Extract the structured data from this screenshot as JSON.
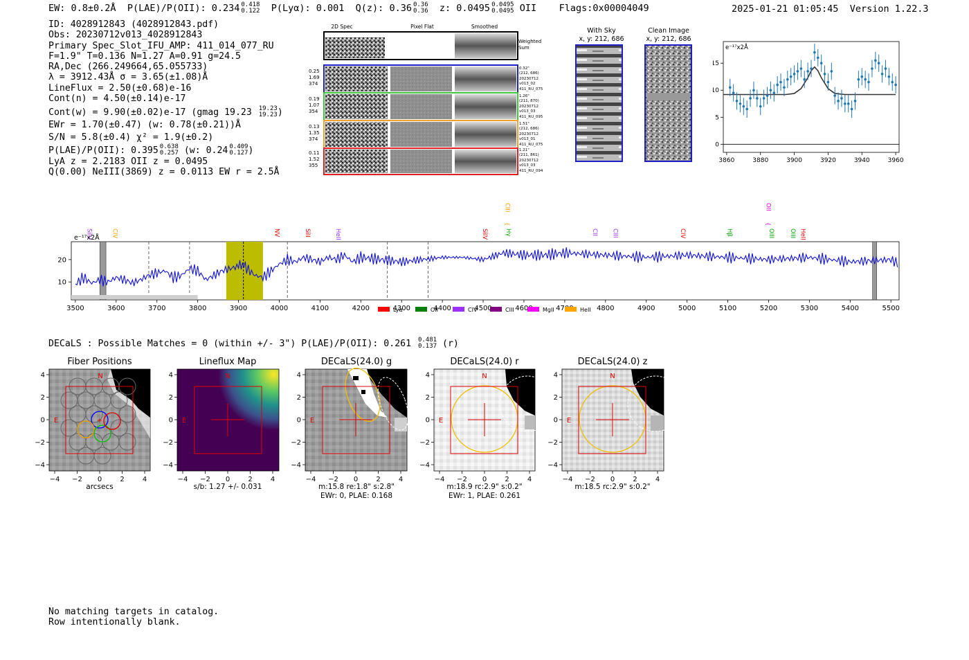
{
  "header": {
    "ew": "EW: 0.8±0.2Å",
    "plae_label": "P(LAE)/P(OII): 0.234",
    "plae_hi": "0.418",
    "plae_lo": "0.122",
    "plya": "P(Lyα): 0.001",
    "qz_label": "Q(z): 0.36",
    "qz_hi": "0.36",
    "qz_lo": "0.36",
    "z_label": "z: 0.0495",
    "z_hi": "0.0495",
    "z_lo": "0.0495",
    "z_line": "OII",
    "flags": "Flags:0x00004049",
    "timestamp": "2025-01-21 01:05:45",
    "version": "Version 1.22.3"
  },
  "info": {
    "lines": [
      "ID: 4028912843 (4028912843.pdf)",
      "Obs: 20230712v013_4028912843",
      "Primary Spec_Slot_IFU_AMP: 411_014_077_RU",
      "F=1.9\"  T=0.136  N=1.27  A=0.91  g=24.5",
      "RA,Dec (266.249664,65.055733)",
      "λ = 3912.43Å  σ = 3.65(±1.08)Å",
      "LineFlux = 2.50(±0.68)e-16",
      "Cont(n) = 4.50(±0.14)e-17"
    ],
    "contw": "Cont(w) = 9.90(±0.02)e-17 (gmag 19.23",
    "contw_hi": "19.23",
    "contw_lo": "19.23",
    "contw_close": ")",
    "ewr": "EWr = 1.70(±0.47) (w: 0.78(±0.21))Å",
    "sn": "S/N = 5.8(±0.4)  χ² = 1.9(±0.2)",
    "plae2": "P(LAE)/P(OII): 0.395",
    "plae2_hi": "0.638",
    "plae2_lo": "0.257",
    "plae2_w": "(w: 0.24",
    "plae2_w_hi": "0.409",
    "plae2_w_lo": "0.127",
    "plae2_close": ")",
    "lya": "LyA z = 2.2183  OII z = 0.0495",
    "q": "Q(0.00) NeIII(3869) z = 0.0113  EW r = 2.5Å"
  },
  "cutouts": {
    "col_headers": [
      "2D Spec",
      "Pixel Flat",
      "Smoothed"
    ],
    "weighted_sum": "Weighted Sum",
    "rows": [
      {
        "left": [
          "0.25",
          "1.69",
          "374"
        ],
        "right": [
          "0.32\"",
          "(212, 686)",
          "20230712",
          "v013_02",
          "411_RU_075"
        ],
        "color": "#1f1fc8"
      },
      {
        "left": [
          "0.19",
          "1.07",
          "354"
        ],
        "right": [
          "1.26\"",
          "(211, 870)",
          "20230712",
          "v013_03",
          "411_RU_095"
        ],
        "color": "#3cc83c"
      },
      {
        "left": [
          "0.13",
          "1.35",
          "374"
        ],
        "right": [
          "1.51\"",
          "(212, 686)",
          "20230712",
          "v013_01",
          "411_RU_075"
        ],
        "color": "#f0a030"
      },
      {
        "left": [
          "0.11",
          "1.52",
          "355"
        ],
        "right": [
          "1.21\"",
          "(211, 861)",
          "20230712",
          "v013_03",
          "411_RU_094"
        ],
        "color": "#e02020"
      }
    ],
    "with_sky_title": "With Sky",
    "with_sky_coords": "x, y: 212, 686",
    "clean_title": "Clean Image",
    "clean_coords": "x, y: 212, 686"
  },
  "fit_plot": {
    "unit_label": "e⁻¹⁷x2Å",
    "xticks": [
      "3860",
      "3880",
      "3900",
      "3920",
      "3940",
      "3960"
    ],
    "yticks": [
      "0",
      "5",
      "10",
      "15"
    ]
  },
  "spectrum": {
    "unit_label": "e⁻¹⁷x2Å",
    "xticks": [
      "3500",
      "3600",
      "3700",
      "3800",
      "3900",
      "4000",
      "4100",
      "4200",
      "4300",
      "4400",
      "4500",
      "4600",
      "4700",
      "4800",
      "4900",
      "5000",
      "5100",
      "5200",
      "5300",
      "5400",
      "5500"
    ],
    "yticks": [
      "10",
      "20"
    ],
    "line_labels": [
      {
        "text": "SiIV",
        "wl": 3530,
        "color": "#9b30ff",
        "row": 0
      },
      {
        "text": "CIV",
        "wl": 3593,
        "color": "#f0a000",
        "row": 0
      },
      {
        "text": "NV",
        "wl": 3990,
        "color": "#e00000",
        "row": 0
      },
      {
        "text": "SiII",
        "wl": 4065,
        "color": "#e00000",
        "row": 0
      },
      {
        "text": "HeII",
        "wl": 4140,
        "color": "#9b30ff",
        "row": 0
      },
      {
        "text": "CIII",
        "wl": 4555,
        "color": "#f0a000",
        "row": 1
      },
      {
        "text": "SiIV",
        "wl": 4500,
        "color": "#e00000",
        "row": 0
      },
      {
        "text": "Hγ",
        "wl": 4558,
        "color": "#00a000",
        "row": 0
      },
      {
        "text": "CII",
        "wl": 4770,
        "color": "#9b30ff",
        "row": 0
      },
      {
        "text": "CIII",
        "wl": 4820,
        "color": "#9b30ff",
        "row": 0
      },
      {
        "text": "CIV",
        "wl": 4985,
        "color": "#e00000",
        "row": 0
      },
      {
        "text": "Hβ",
        "wl": 5100,
        "color": "#00a000",
        "row": 0
      },
      {
        "text": "OII",
        "wl": 5195,
        "color": "#e000e0",
        "row": 1
      },
      {
        "text": "OIII",
        "wl": 5203,
        "color": "#00a000",
        "row": 0
      },
      {
        "text": "OIII",
        "wl": 5255,
        "color": "#00a000",
        "row": 0
      },
      {
        "text": "HeII",
        "wl": 5280,
        "color": "#e00000",
        "row": 0
      }
    ],
    "legend": [
      {
        "label": "Lyα",
        "color": "#ff0000"
      },
      {
        "label": "OII",
        "color": "#008000"
      },
      {
        "label": "CIV",
        "color": "#9b30ff"
      },
      {
        "label": "CIII",
        "color": "#800080"
      },
      {
        "label": "MgII",
        "color": "#ff00ff"
      },
      {
        "label": "HeII",
        "color": "#ffa500"
      }
    ]
  },
  "decals": {
    "summary": "DECaLS : Possible Matches = 0 (within +/- 3\")  P(LAE)/P(OII): 0.261",
    "summary_hi": "0.481",
    "summary_lo": "0.137",
    "summary_tail": "(r)",
    "panels": [
      {
        "title": "Fiber Positions",
        "cap1": "arcsecs",
        "cap2": ""
      },
      {
        "title": "Lineflux Map",
        "cap1": "s/b: 1.27 +/- 0.031",
        "cap2": ""
      },
      {
        "title": "DECaLS(24.0) g",
        "cap1": "m:15.8  re:1.8\"  s:2.8\"",
        "cap2": "EWr: 0, PLAE: 0.168"
      },
      {
        "title": "DECaLS(24.0) r",
        "cap1": "m:18.9 rc:2.9\"  s:0.2\"",
        "cap2": "EWr: 1, PLAE: 0.261"
      },
      {
        "title": "DECaLS(24.0) z",
        "cap1": "m:18.5 rc:2.9\"  s:0.2\"",
        "cap2": ""
      }
    ],
    "ticks": [
      "−4",
      "−2",
      "0",
      "2",
      "4"
    ],
    "yticks": [
      "4",
      "2",
      "0",
      "−2",
      "−4"
    ],
    "north": "N",
    "east": "E"
  },
  "footer": {
    "line1": "No matching targets in catalog.",
    "line2": "Row intentionally blank."
  },
  "chart_data": [
    {
      "type": "scatter",
      "title": "",
      "xlabel": "",
      "ylabel": "e⁻¹⁷x2Å",
      "xlim": [
        3858,
        3962
      ],
      "ylim": [
        -1.5,
        19
      ],
      "series": [
        {
          "x": [
            3862,
            3864,
            3866,
            3868,
            3870,
            3872,
            3874,
            3876,
            3878,
            3880,
            3882,
            3884,
            3886,
            3888,
            3890,
            3892,
            3894,
            3896,
            3898,
            3900,
            3902,
            3904,
            3906,
            3908,
            3910,
            3912,
            3914,
            3916,
            3918,
            3920,
            3922,
            3924,
            3926,
            3928,
            3930,
            3932,
            3934,
            3936,
            3938,
            3940,
            3942,
            3944,
            3946,
            3948,
            3950,
            3952,
            3954,
            3956,
            3958,
            3960
          ],
          "y": [
            10.5,
            9.5,
            8,
            7.5,
            7,
            6.5,
            8.5,
            10,
            8.5,
            7,
            8.5,
            9,
            10,
            9.5,
            11,
            11.5,
            10.5,
            12,
            12.5,
            13,
            13.5,
            14,
            12,
            13.5,
            14,
            17,
            16,
            15,
            13,
            11.5,
            13.5,
            9,
            8,
            8.5,
            7.5,
            7.5,
            6.5,
            8,
            12,
            12.5,
            12,
            11.5,
            14,
            15.5,
            15,
            13,
            14,
            12.5,
            11.5,
            11
          ]
        },
        {
          "type": "line",
          "x": [
            3858,
            3880,
            3895,
            3900,
            3904,
            3908,
            3910,
            3912,
            3914,
            3916,
            3920,
            3924,
            3930,
            3960
          ],
          "y": [
            9.2,
            9.2,
            9.2,
            9.4,
            10.3,
            12.3,
            13.6,
            14.3,
            13.6,
            12.3,
            10.3,
            9.4,
            9.2,
            9.2
          ]
        }
      ]
    },
    {
      "type": "line",
      "title": "",
      "xlabel": "",
      "ylabel": "e⁻¹⁷x2Å",
      "xlim": [
        3490,
        5520
      ],
      "ylim": [
        2,
        28
      ],
      "series": [
        {
          "x": [
            3500,
            3520,
            3540,
            3560,
            3580,
            3600,
            3620,
            3640,
            3660,
            3680,
            3700,
            3720,
            3740,
            3760,
            3780,
            3800,
            3820,
            3840,
            3860,
            3880,
            3900,
            3910,
            3920,
            3940,
            3960,
            3980,
            4000,
            4020,
            4040,
            4060,
            4080,
            4100,
            4120,
            4140,
            4160,
            4180,
            4200,
            4250,
            4300,
            4350,
            4400,
            4450,
            4500,
            4550,
            4600,
            4650,
            4700,
            4800,
            4900,
            5000,
            5100,
            5200,
            5300,
            5400,
            5500,
            5520
          ],
          "y": [
            9,
            12,
            9.5,
            11,
            10,
            12,
            11,
            9.5,
            11,
            13,
            14,
            15,
            12,
            13,
            16,
            15,
            11,
            13,
            15,
            16,
            17,
            18,
            16,
            13,
            12,
            15,
            18,
            20,
            19,
            21,
            20,
            19,
            21,
            20,
            22,
            19,
            21,
            20,
            19,
            20,
            21,
            21,
            20,
            23,
            22,
            22,
            23,
            22,
            21,
            22,
            21,
            20,
            21,
            19,
            20,
            18
          ]
        }
      ],
      "shaded_regions": [
        [
          3560,
          3575
        ],
        [
          3870,
          3960
        ],
        [
          5455,
          5465
        ]
      ],
      "dashed_lines": [
        3680,
        3780,
        4020,
        4265,
        4365
      ],
      "dotted_lines": [
        3912
      ]
    }
  ]
}
